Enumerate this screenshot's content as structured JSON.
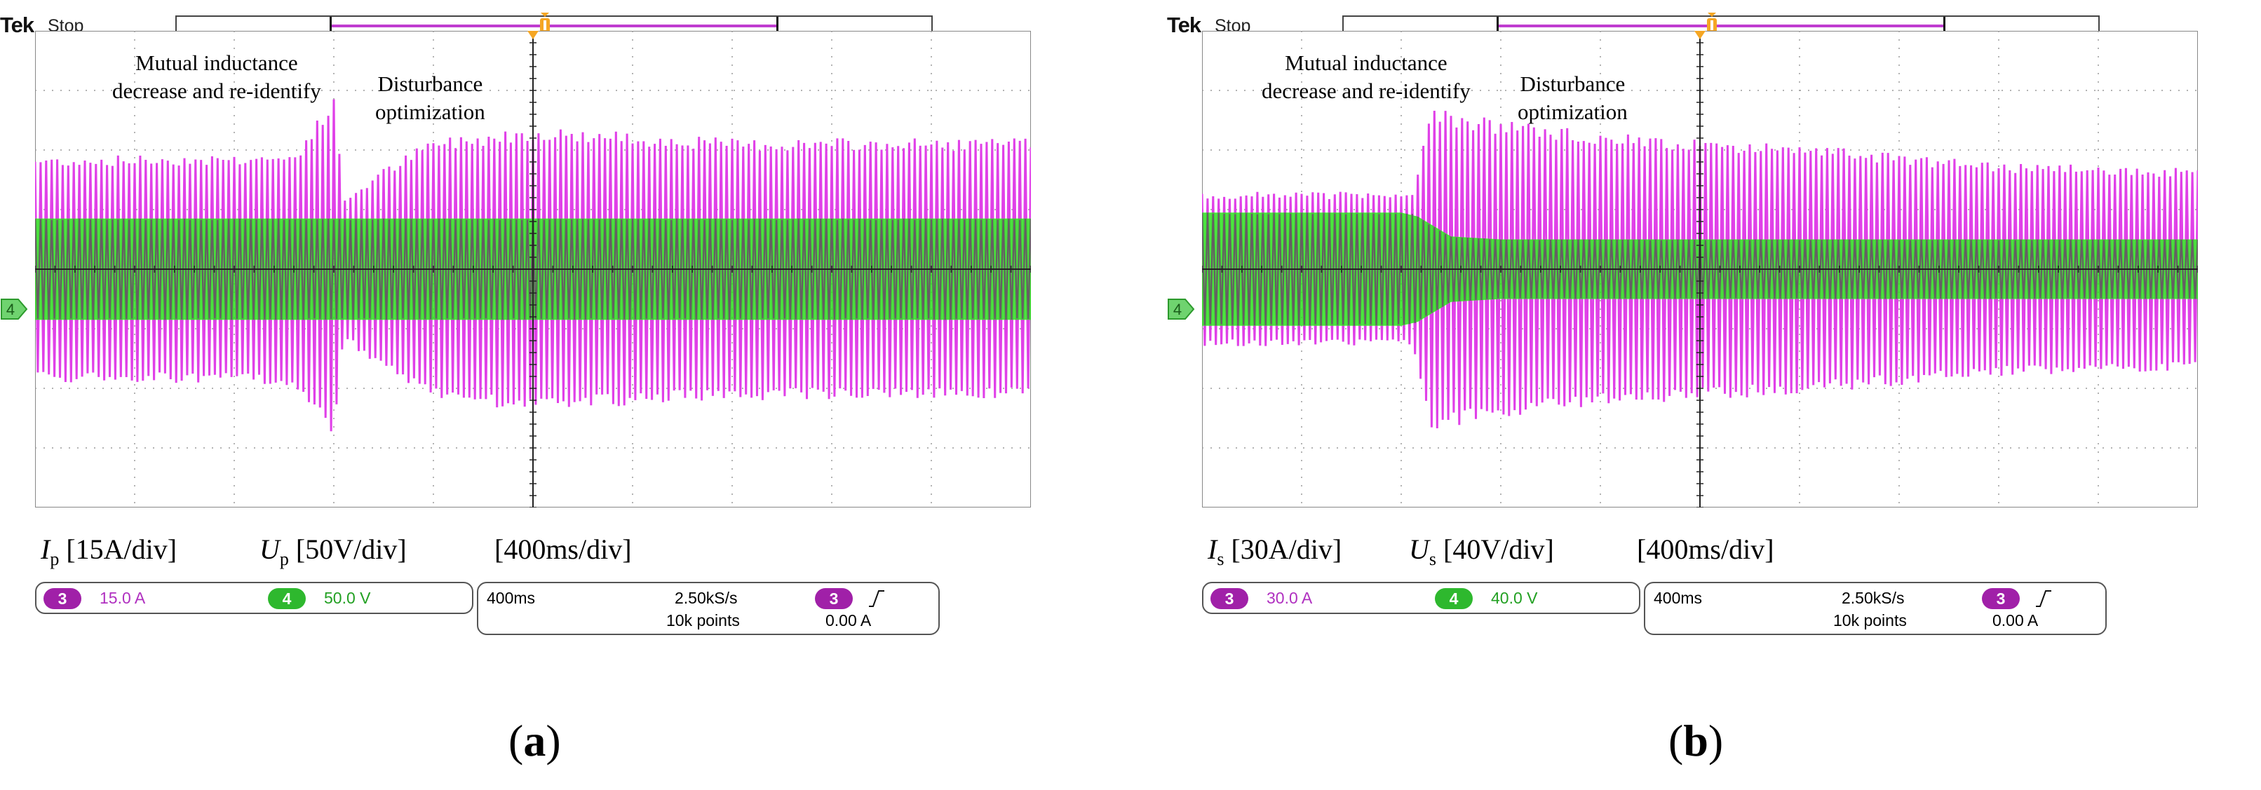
{
  "colors": {
    "grid_bg": "#ffffff",
    "current_trace": "#e040e8",
    "voltage_trace": "#2ce21c",
    "overlap": "#6c4a6c",
    "channel3": "#a020a8",
    "channel4": "#2eb82e",
    "trigger": "#f5a623"
  },
  "chart_data": [
    {
      "type": "line",
      "panel": "a",
      "caption": "(a)",
      "header": {
        "brand": "Tek",
        "status": "Stop"
      },
      "annotations": [
        {
          "id": "mutual",
          "lines": [
            "Mutual inductance",
            "decrease and re-identify"
          ]
        },
        {
          "id": "disturbance",
          "lines": [
            "Disturbance",
            "optimization"
          ]
        }
      ],
      "scale_labels": {
        "current": {
          "symbol": "I",
          "sub": "p",
          "scale": "[15A/div]"
        },
        "voltage": {
          "symbol": "U",
          "sub": "p",
          "scale": "[50V/div]"
        },
        "time": "[400ms/div]"
      },
      "channel_readouts": {
        "ch3_number": "3",
        "ch3_value": "15.0 A",
        "ch4_number": "4",
        "ch4_value": "50.0 V",
        "ch_marker": "4"
      },
      "timebase_readouts": {
        "time_div": "400ms",
        "sample_rate": "2.50kS/s",
        "record": "10k points",
        "trig_channel": "3",
        "trig_level": "0.00 A"
      },
      "x_div": 10,
      "y_div": 8,
      "series": [
        {
          "name": "Ip",
          "unit_scale": "15A/div",
          "envelope_x_div": [
            0,
            2.6,
            3.0,
            3.1,
            3.5,
            4,
            5,
            6,
            7,
            8,
            9,
            10
          ],
          "envelope_amp_div": [
            1.9,
            1.95,
            2.9,
            1.2,
            1.7,
            2.2,
            2.4,
            2.3,
            2.2,
            2.2,
            2.2,
            2.2
          ]
        },
        {
          "name": "Up",
          "unit_scale": "50V/div",
          "envelope_x_div": [
            0,
            10
          ],
          "envelope_amp_div": [
            0.85,
            0.85
          ]
        }
      ]
    },
    {
      "type": "line",
      "panel": "b",
      "caption": "(b)",
      "header": {
        "brand": "Tek",
        "status": "Stop"
      },
      "annotations": [
        {
          "id": "mutual",
          "lines": [
            "Mutual inductance",
            "decrease and re-identify"
          ]
        },
        {
          "id": "disturbance",
          "lines": [
            "Disturbance",
            "optimization"
          ]
        }
      ],
      "scale_labels": {
        "current": {
          "symbol": "I",
          "sub": "s",
          "scale": "[30A/div]"
        },
        "voltage": {
          "symbol": "U",
          "sub": "s",
          "scale": "[40V/div]"
        },
        "time": "[400ms/div]"
      },
      "channel_readouts": {
        "ch3_number": "3",
        "ch3_value": "30.0 A",
        "ch4_number": "4",
        "ch4_value": "40.0 V",
        "ch_marker": "4"
      },
      "timebase_readouts": {
        "time_div": "400ms",
        "sample_rate": "2.50kS/s",
        "record": "10k points",
        "trig_channel": "3",
        "trig_level": "0.00 A"
      },
      "x_div": 10,
      "y_div": 8,
      "series": [
        {
          "name": "Is",
          "unit_scale": "30A/div",
          "envelope_x_div": [
            0,
            2.1,
            2.2,
            2.3,
            3,
            4,
            5,
            6,
            8,
            10
          ],
          "envelope_amp_div": [
            1.3,
            1.3,
            1.9,
            2.7,
            2.5,
            2.3,
            2.2,
            2.1,
            1.8,
            1.7
          ]
        },
        {
          "name": "Us",
          "unit_scale": "40V/div",
          "envelope_x_div": [
            0,
            2.1,
            2.5,
            3,
            10
          ],
          "envelope_amp_div": [
            0.95,
            0.95,
            0.55,
            0.5,
            0.5
          ]
        }
      ]
    }
  ]
}
